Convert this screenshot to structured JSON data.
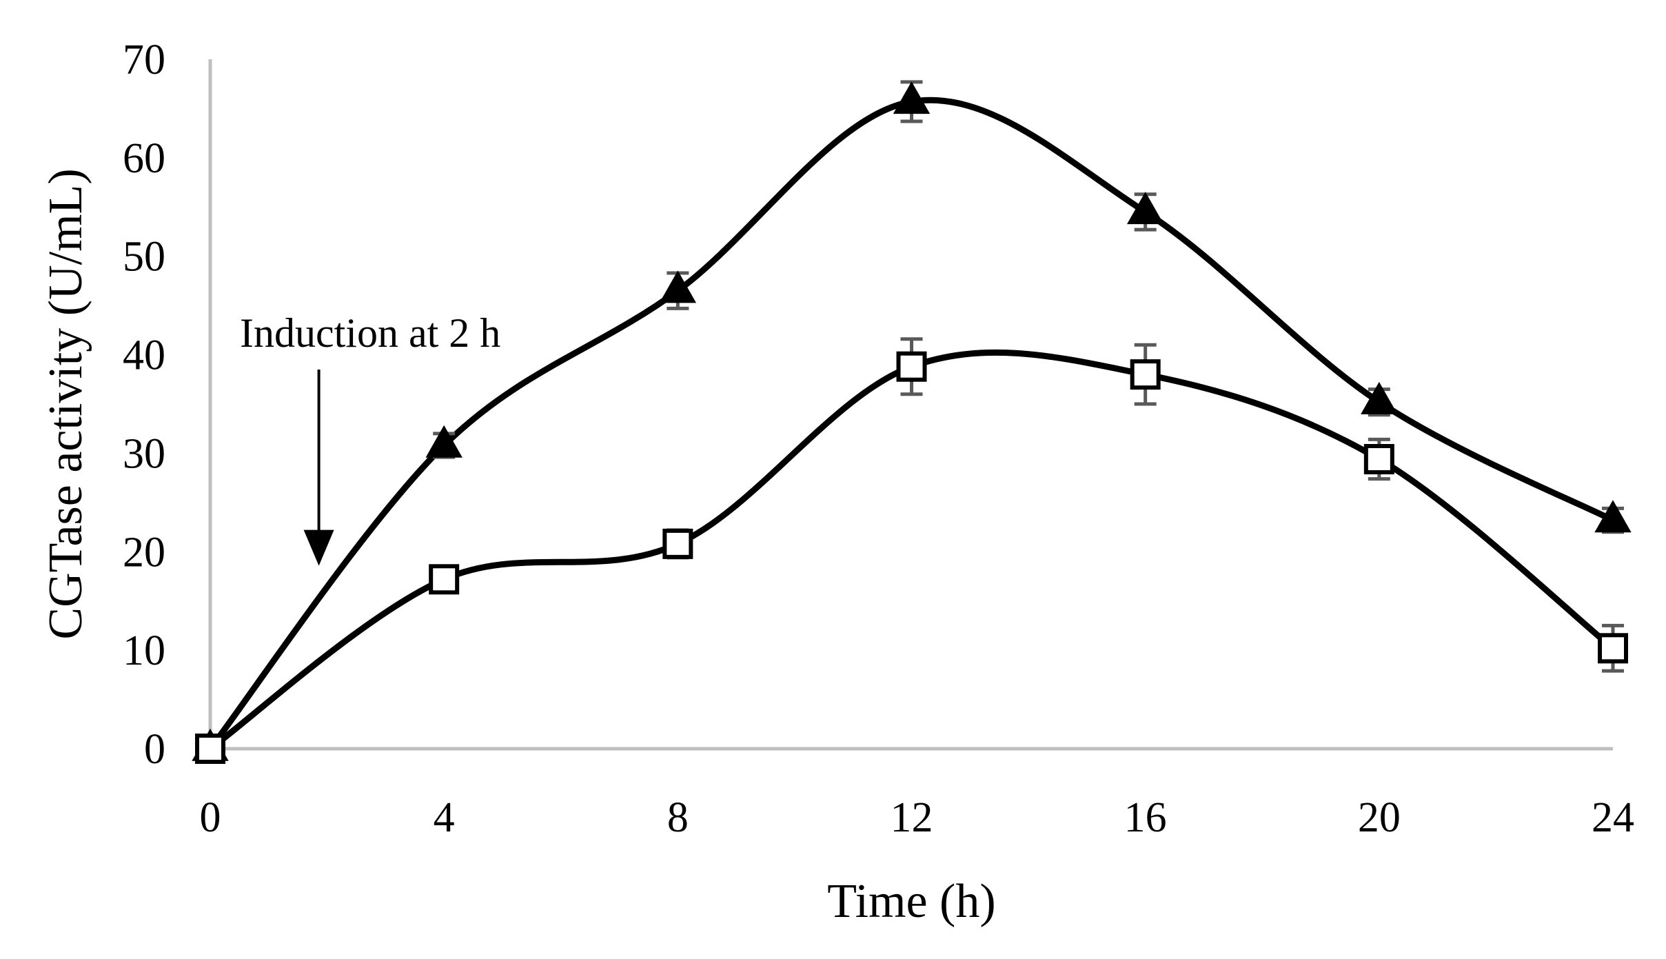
{
  "chart_data": {
    "type": "line",
    "title": "",
    "xlabel": "Time (h)",
    "ylabel": "CGTase activity (U/mL)",
    "xlim": [
      0,
      24
    ],
    "ylim": [
      0,
      70
    ],
    "x_ticks": [
      0,
      4,
      8,
      12,
      16,
      20,
      24
    ],
    "y_ticks": [
      0,
      10,
      20,
      30,
      40,
      50,
      60,
      70
    ],
    "x_tick_labels": [
      "0",
      "4",
      "8",
      "12",
      "16",
      "20",
      "24"
    ],
    "y_tick_labels": [
      "0",
      "10",
      "20",
      "30",
      "40",
      "50",
      "60",
      "70"
    ],
    "grid": false,
    "smooth": true,
    "x": [
      0,
      4,
      8,
      12,
      16,
      20,
      24
    ],
    "series": [
      {
        "name": "triangle series",
        "marker": "filled-triangle",
        "values": [
          0,
          30.8,
          46.5,
          65.7,
          54.5,
          35.2,
          23.2
        ],
        "errors": [
          0,
          1.2,
          1.8,
          2.0,
          1.8,
          1.3,
          1.2
        ]
      },
      {
        "name": "square series",
        "marker": "open-square",
        "values": [
          0,
          17.2,
          20.8,
          38.8,
          38.0,
          29.4,
          10.2
        ],
        "errors": [
          0,
          1.2,
          1.4,
          2.8,
          3.0,
          2.0,
          2.3
        ]
      }
    ],
    "annotations": [
      {
        "text": "Induction at 2 h",
        "arrow_x": 2,
        "arrow_from_y": 38.5,
        "arrow_to_y": 19.0
      }
    ]
  },
  "colors": {
    "line": "#000000",
    "axis": "#bfbfbf",
    "error_bar": "#595959"
  }
}
